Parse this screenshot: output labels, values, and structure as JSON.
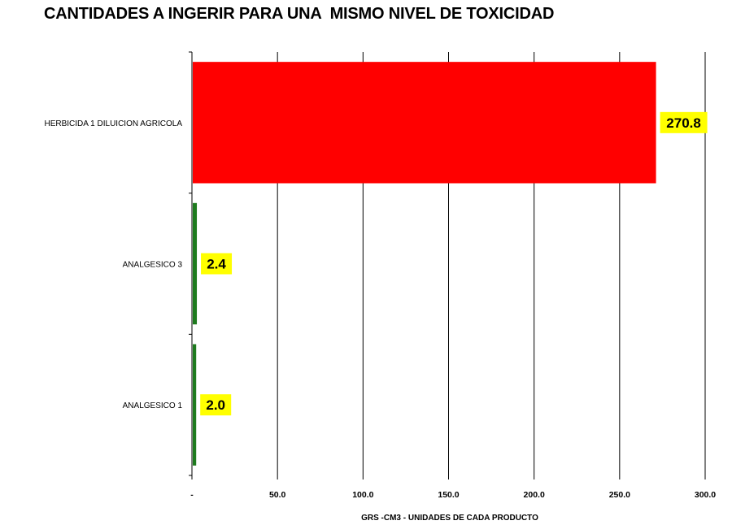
{
  "chart_data": {
    "type": "bar",
    "orientation": "horizontal",
    "title": "CANTIDADES A INGERIR PARA UNA  MISMO NIVEL DE TOXICIDAD",
    "xlabel": "GRS -CM3 - UNIDADES DE CADA PRODUCTO",
    "ylabel": "",
    "categories": [
      "HERBICIDA 1 DILUICION AGRICOLA",
      "ANALGESICO 3",
      "ANALGESICO 1"
    ],
    "values": [
      270.8,
      2.4,
      2.0
    ],
    "data_labels": [
      "270.8",
      "2.4",
      "2.0"
    ],
    "bar_colors": [
      "#ff0000",
      "#1e7b1e",
      "#1e7b1e"
    ],
    "label_background": "#ffff00",
    "xlim": [
      0,
      300
    ],
    "ticks": [
      0,
      50,
      100,
      150,
      200,
      250,
      300
    ],
    "tick_labels": [
      "-",
      "50.0",
      "100.0",
      "150.0",
      "200.0",
      "250.0",
      "300.0"
    ],
    "grid": true,
    "legend": "none"
  }
}
